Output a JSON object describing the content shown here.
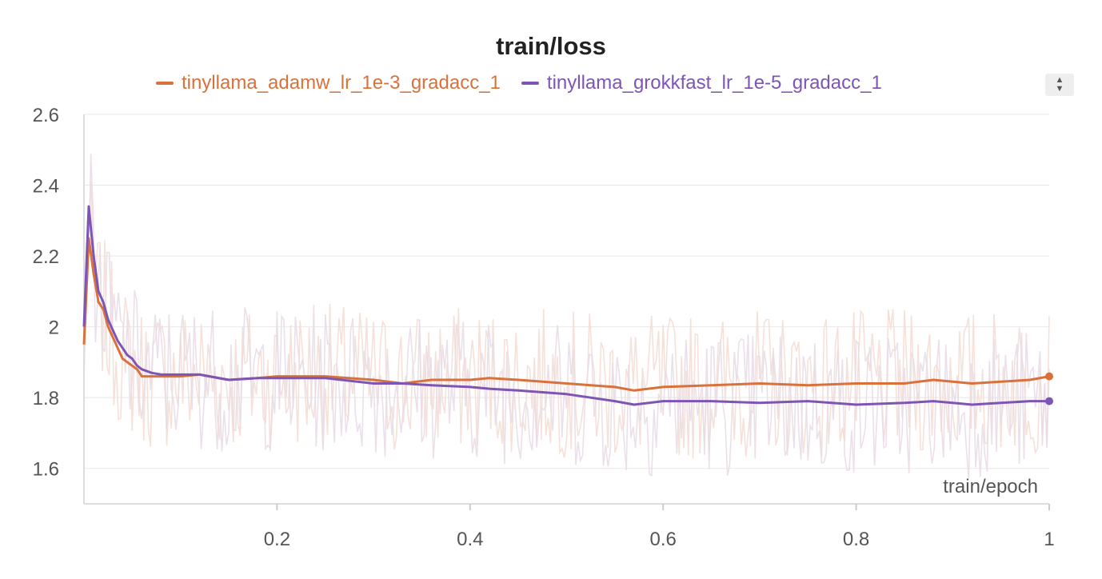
{
  "chart_data": {
    "type": "line",
    "title": "train/loss",
    "xlabel": "train/epoch",
    "ylabel": "",
    "xlim": [
      0,
      1
    ],
    "ylim": [
      1.5,
      2.6
    ],
    "xticks": [
      0.2,
      0.4,
      0.6,
      0.8,
      1
    ],
    "xtick_labels": [
      "0.2",
      "0.4",
      "0.6",
      "0.8",
      "1"
    ],
    "yticks": [
      1.6,
      1.8,
      2,
      2.2,
      2.4,
      2.6
    ],
    "ytick_labels": [
      "1.6",
      "1.8",
      "2",
      "2.2",
      "2.4",
      "2.6"
    ],
    "grid": true,
    "legend_position": "top",
    "series": [
      {
        "name": "tinyllama_adamw_lr_1e-3_gradacc_1",
        "color": "#d9713b",
        "raw_color": "#f3dcd2",
        "x": [
          0.0,
          0.005,
          0.01,
          0.015,
          0.02,
          0.025,
          0.03,
          0.035,
          0.04,
          0.045,
          0.05,
          0.055,
          0.06,
          0.07,
          0.08,
          0.1,
          0.12,
          0.15,
          0.18,
          0.2,
          0.25,
          0.3,
          0.33,
          0.36,
          0.4,
          0.42,
          0.45,
          0.5,
          0.55,
          0.57,
          0.6,
          0.65,
          0.7,
          0.75,
          0.8,
          0.85,
          0.88,
          0.9,
          0.92,
          0.95,
          0.98,
          1.0
        ],
        "y": [
          1.95,
          2.25,
          2.15,
          2.07,
          2.05,
          2.0,
          1.97,
          1.94,
          1.91,
          1.9,
          1.89,
          1.88,
          1.86,
          1.86,
          1.86,
          1.86,
          1.865,
          1.85,
          1.855,
          1.86,
          1.86,
          1.85,
          1.84,
          1.85,
          1.85,
          1.855,
          1.85,
          1.84,
          1.83,
          1.82,
          1.83,
          1.835,
          1.84,
          1.835,
          1.84,
          1.84,
          1.85,
          1.845,
          1.84,
          1.845,
          1.85,
          1.86
        ]
      },
      {
        "name": "tinyllama_grokkfast_lr_1e-5_gradacc_1",
        "color": "#7e55b5",
        "raw_color": "#e7dbe6",
        "x": [
          0.0,
          0.005,
          0.01,
          0.015,
          0.02,
          0.025,
          0.03,
          0.035,
          0.04,
          0.045,
          0.05,
          0.055,
          0.06,
          0.07,
          0.08,
          0.1,
          0.12,
          0.15,
          0.18,
          0.2,
          0.25,
          0.3,
          0.33,
          0.36,
          0.4,
          0.42,
          0.45,
          0.5,
          0.55,
          0.57,
          0.6,
          0.65,
          0.7,
          0.75,
          0.8,
          0.85,
          0.88,
          0.9,
          0.92,
          0.95,
          0.98,
          1.0
        ],
        "y": [
          2.0,
          2.34,
          2.2,
          2.1,
          2.07,
          2.02,
          1.99,
          1.96,
          1.94,
          1.92,
          1.91,
          1.89,
          1.88,
          1.87,
          1.865,
          1.865,
          1.865,
          1.85,
          1.855,
          1.855,
          1.855,
          1.84,
          1.84,
          1.835,
          1.83,
          1.825,
          1.82,
          1.81,
          1.79,
          1.78,
          1.79,
          1.79,
          1.785,
          1.79,
          1.78,
          1.785,
          1.79,
          1.785,
          1.78,
          1.785,
          1.79,
          1.79
        ]
      }
    ]
  }
}
